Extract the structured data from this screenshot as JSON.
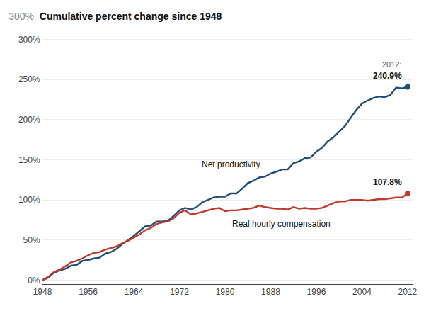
{
  "chart_data": {
    "type": "line",
    "title": "Cumulative percent change since 1948",
    "annotations": [
      "300%",
      "2012:",
      "240.9%",
      "107.8%"
    ],
    "series": [
      {
        "name": "Net productivity",
        "color": "#1f4e79",
        "x": [
          1948,
          1949,
          1950,
          1951,
          1952,
          1953,
          1954,
          1955,
          1956,
          1957,
          1958,
          1959,
          1960,
          1961,
          1962,
          1963,
          1964,
          1965,
          1966,
          1967,
          1968,
          1969,
          1970,
          1971,
          1972,
          1973,
          1974,
          1975,
          1976,
          1977,
          1978,
          1979,
          1980,
          1981,
          1982,
          1983,
          1984,
          1985,
          1986,
          1987,
          1988,
          1989,
          1990,
          1991,
          1992,
          1993,
          1994,
          1995,
          1996,
          1997,
          1998,
          1999,
          2000,
          2001,
          2002,
          2003,
          2004,
          2005,
          2006,
          2007,
          2008,
          2009,
          2010,
          2011,
          2012
        ],
        "values": [
          0,
          3,
          9,
          12,
          14,
          18,
          19,
          24,
          25,
          27,
          28,
          33,
          35,
          39,
          45,
          50,
          55,
          61,
          67,
          68,
          73,
          73,
          74,
          80,
          87,
          90,
          88,
          91,
          97,
          100,
          103,
          104,
          104,
          108,
          108,
          114,
          121,
          124,
          128,
          129,
          133,
          135,
          138,
          138,
          146,
          148,
          152,
          153,
          160,
          165,
          173,
          178,
          185,
          192,
          202,
          212,
          220,
          224,
          227,
          229,
          228,
          231,
          240,
          239,
          240.9
        ]
      },
      {
        "name": "Real hourly compensation",
        "color": "#c0392b",
        "x": [
          1948,
          1949,
          1950,
          1951,
          1952,
          1953,
          1954,
          1955,
          1956,
          1957,
          1958,
          1959,
          1960,
          1961,
          1962,
          1963,
          1964,
          1965,
          1966,
          1967,
          1968,
          1969,
          1970,
          1971,
          1972,
          1973,
          1974,
          1975,
          1976,
          1977,
          1978,
          1979,
          1980,
          1981,
          1982,
          1983,
          1984,
          1985,
          1986,
          1987,
          1988,
          1989,
          1990,
          1991,
          1992,
          1993,
          1994,
          1995,
          1996,
          1997,
          1998,
          1999,
          2000,
          2001,
          2002,
          2003,
          2004,
          2005,
          2006,
          2007,
          2008,
          2009,
          2010,
          2011,
          2012
        ],
        "values": [
          0,
          4,
          10,
          13,
          17,
          22,
          24,
          27,
          31,
          34,
          35,
          38,
          40,
          42,
          46,
          49,
          53,
          57,
          62,
          65,
          70,
          72,
          73,
          77,
          84,
          87,
          82,
          83,
          85,
          87,
          89,
          90,
          86,
          87,
          87,
          88,
          89,
          90,
          93,
          91,
          90,
          89,
          89,
          88,
          91,
          89,
          90,
          89,
          89,
          90,
          93,
          96,
          98,
          98,
          100,
          100,
          100,
          99,
          100,
          101,
          101,
          102,
          103,
          103,
          107.8
        ]
      }
    ],
    "xlim": [
      1948,
      2013
    ],
    "xticks": [
      1948,
      1956,
      1964,
      1972,
      1980,
      1988,
      1996,
      2004,
      2012
    ],
    "ylim": [
      -5,
      305
    ],
    "yticks": [
      {
        "value": 0,
        "label": "0%"
      },
      {
        "value": 50,
        "label": "50%"
      },
      {
        "value": 100,
        "label": "100%"
      },
      {
        "value": 150,
        "label": "150%"
      },
      {
        "value": 200,
        "label": "200%"
      },
      {
        "value": 250,
        "label": "250%"
      },
      {
        "value": 300,
        "label": "300%"
      }
    ],
    "grid": true,
    "legend": false
  }
}
